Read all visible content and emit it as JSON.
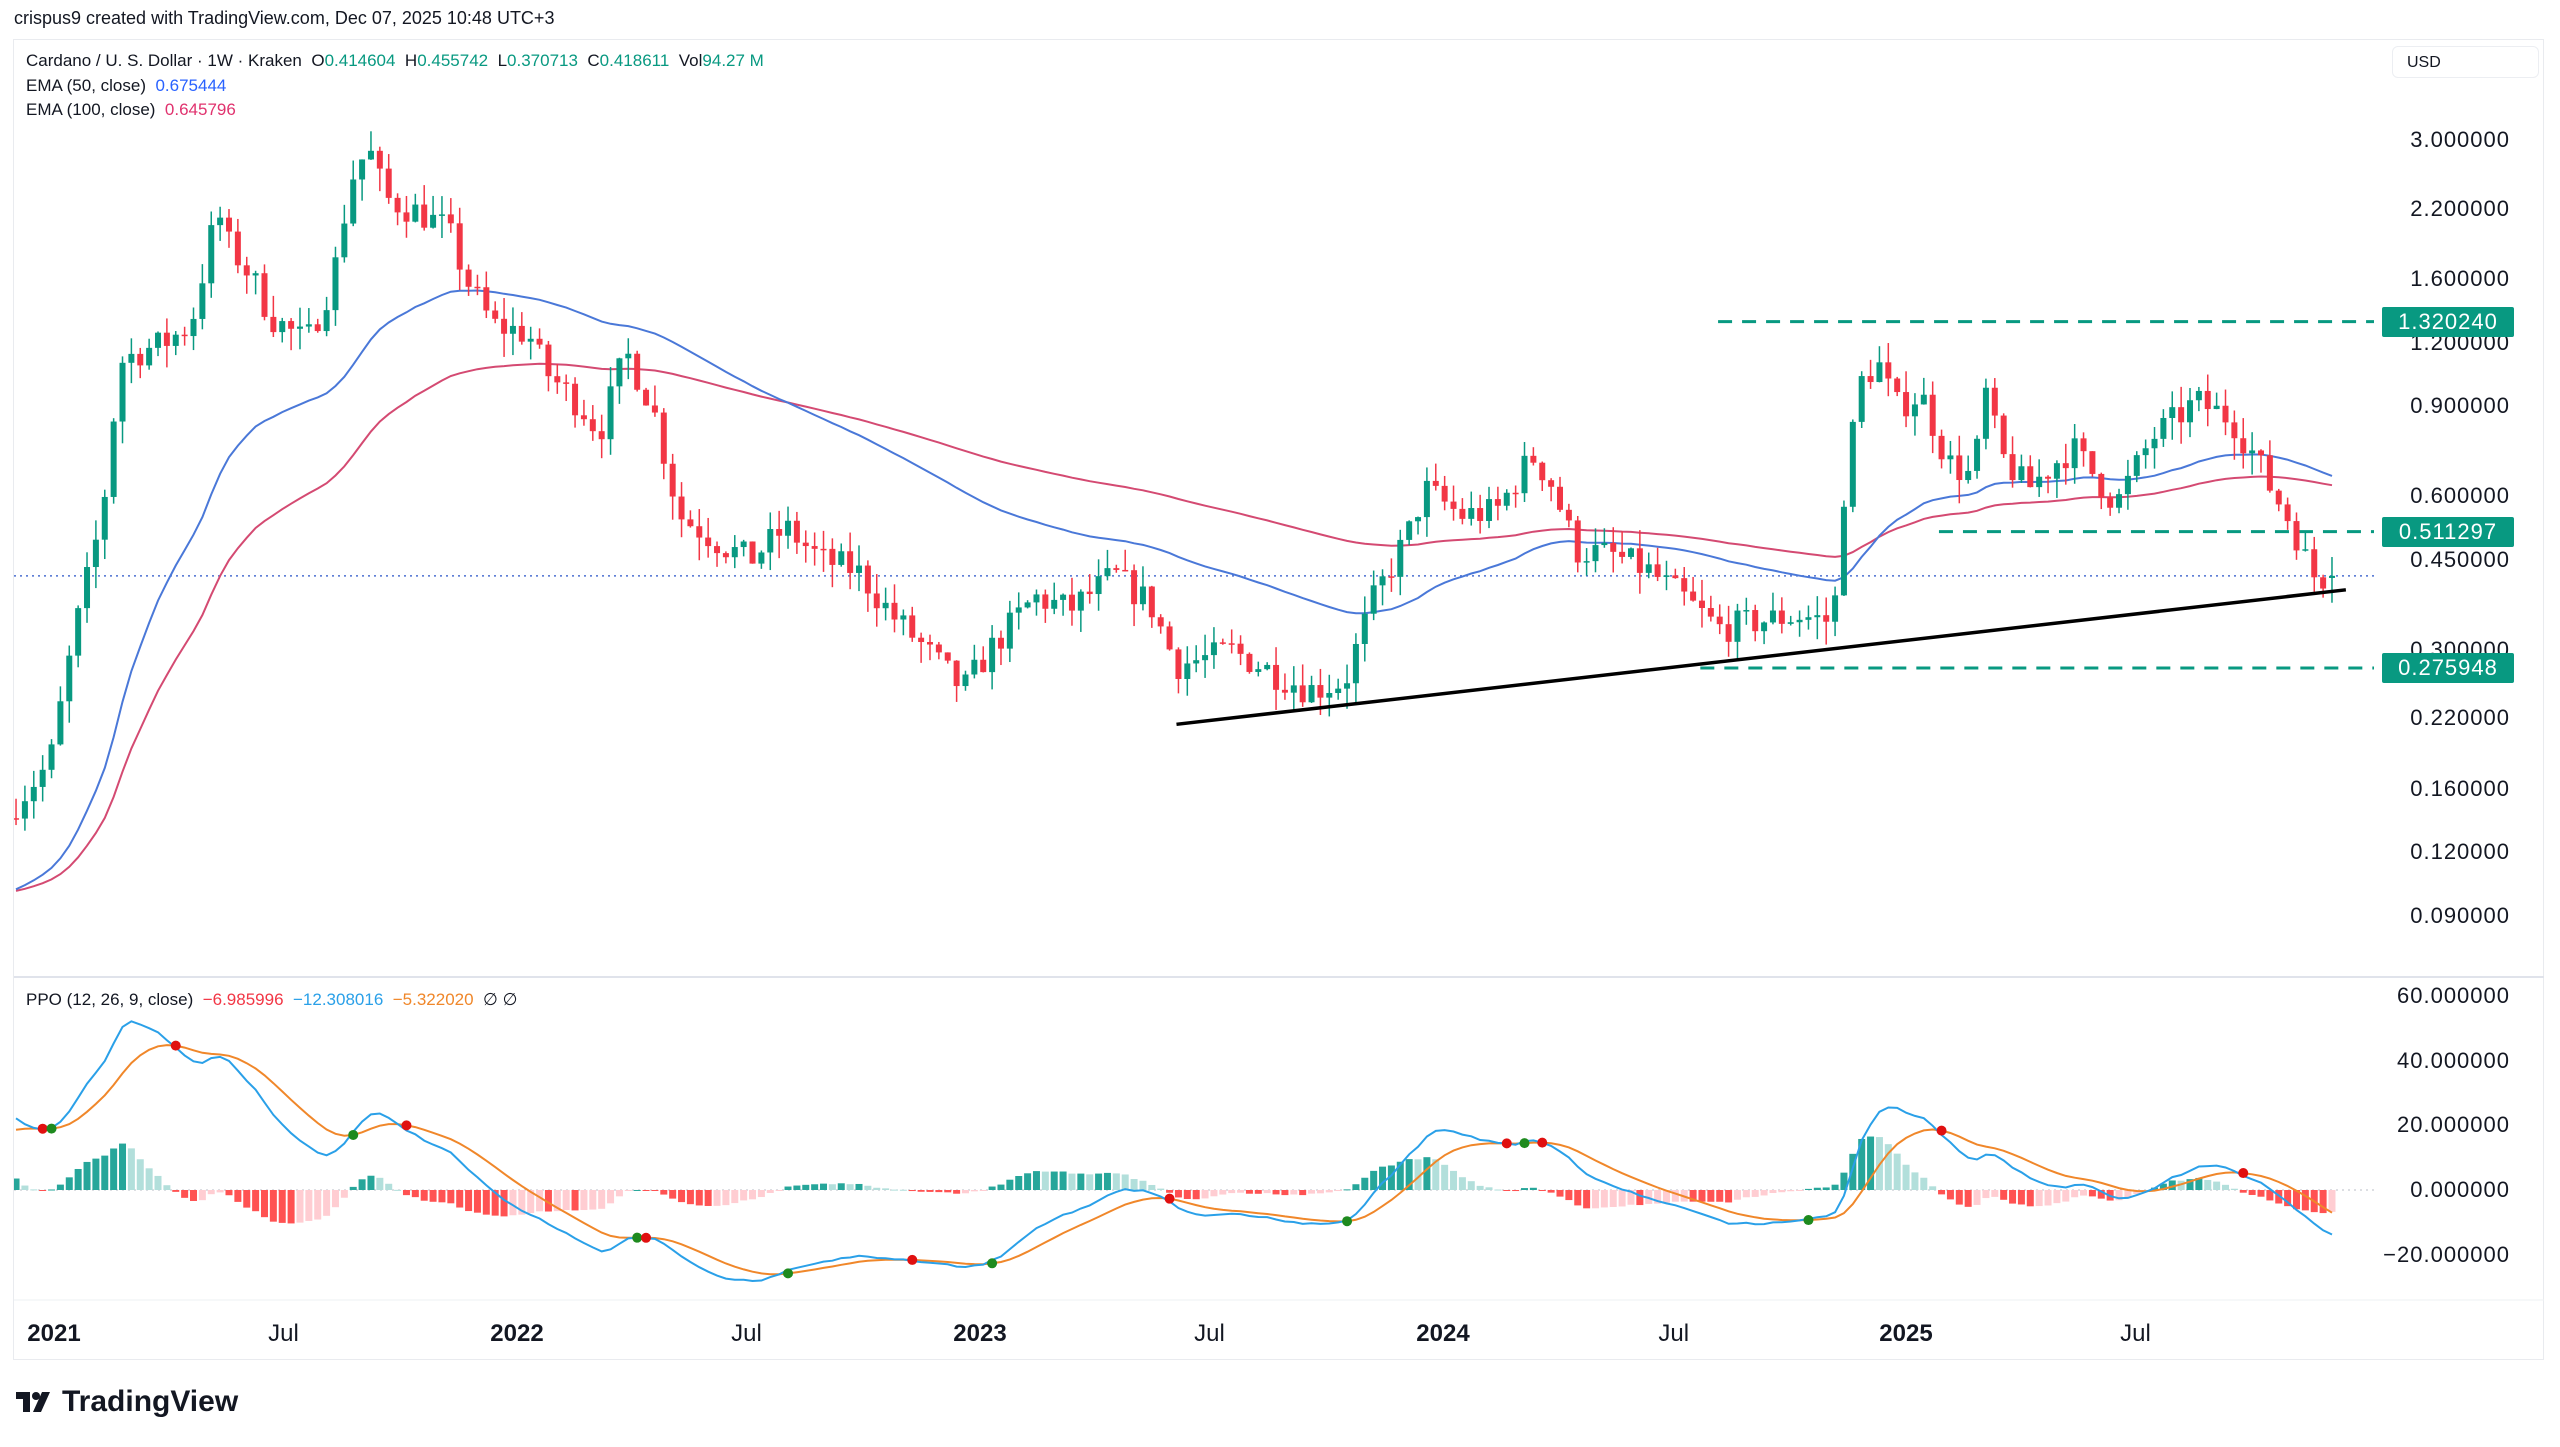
{
  "credit": "crispus9 created with TradingView.com, Dec 07, 2025 10:48 UTC+3",
  "legend": {
    "symbol": "Cardano / U. S. Dollar · 1W · Kraken",
    "o_label": "O",
    "o": "0.414604",
    "h_label": "H",
    "h": "0.455742",
    "l_label": "L",
    "l": "0.370713",
    "c_label": "C",
    "c": "0.418611",
    "vol_label": "Vol",
    "vol": "94.27 M",
    "ema50_label": "EMA (50, close)",
    "ema50": "0.675444",
    "ema100_label": "EMA (100, close)",
    "ema100": "0.645796"
  },
  "currency_button": "USD",
  "ppo_legend": {
    "label": "PPO (12, 26, 9, close)",
    "hist": "−6.985996",
    "ppo": "−12.308016",
    "signal": "−5.322020",
    "icons": "∅ ∅"
  },
  "logo_text": "TradingView",
  "colors": {
    "up": "#089981",
    "down": "#f23645",
    "ema50": "#4a78d8",
    "ema100": "#d44a72",
    "ppo": "#2aa0e8",
    "signal": "#f0872a",
    "level": "#089981"
  },
  "chart_data": {
    "type": "candlestick",
    "title": "Cardano / U. S. Dollar · 1W · Kraken",
    "scale": "log",
    "ylim": [
      0.085,
      3.3
    ],
    "price_ticks": [
      "3.000000",
      "2.200000",
      "1.600000",
      "1.200000",
      "0.900000",
      "0.600000",
      "0.450000",
      "0.300000",
      "0.220000",
      "0.160000",
      "0.120000",
      "0.090000"
    ],
    "ppo_ticks": [
      "60.000000",
      "40.000000",
      "20.000000",
      "0.000000",
      "−20.000000"
    ],
    "time_ticks": [
      {
        "label": "2021",
        "date": "2021-01-01",
        "year": true
      },
      {
        "label": "Jul",
        "date": "2021-07-01"
      },
      {
        "label": "2022",
        "date": "2022-01-01",
        "year": true
      },
      {
        "label": "Jul",
        "date": "2022-07-01"
      },
      {
        "label": "2023",
        "date": "2023-01-01",
        "year": true
      },
      {
        "label": "Jul",
        "date": "2023-07-01"
      },
      {
        "label": "2024",
        "date": "2024-01-01",
        "year": true
      },
      {
        "label": "Jul",
        "date": "2024-07-01"
      },
      {
        "label": "2025",
        "date": "2025-01-01",
        "year": true
      },
      {
        "label": "Jul",
        "date": "2025-07-01"
      }
    ],
    "levels": [
      {
        "value": 1.32024,
        "label": "1.320240",
        "from": "2024-08-05"
      },
      {
        "value": 0.511297,
        "label": "0.511297",
        "from": "2025-01-27"
      },
      {
        "value": 0.275948,
        "label": "0.275948",
        "from": "2024-07-22"
      }
    ],
    "trendline": [
      {
        "date": "2023-06-05",
        "price": 0.214
      },
      {
        "date": "2025-12-14",
        "price": 0.393
      }
    ],
    "last_close": 0.418611,
    "last_candle": {
      "open": 0.414604,
      "high": 0.455742,
      "low": 0.370713,
      "close": 0.418611
    },
    "close_keypoints": [
      [
        "2020-12-01",
        0.15
      ],
      [
        "2020-12-28",
        0.18
      ],
      [
        "2021-01-18",
        0.33
      ],
      [
        "2021-02-08",
        0.55
      ],
      [
        "2021-02-22",
        1.1
      ],
      [
        "2021-03-08",
        1.15
      ],
      [
        "2021-03-29",
        1.2
      ],
      [
        "2021-04-19",
        1.3
      ],
      [
        "2021-05-10",
        2.2
      ],
      [
        "2021-05-17",
        1.9
      ],
      [
        "2021-06-07",
        1.6
      ],
      [
        "2021-06-21",
        1.35
      ],
      [
        "2021-07-19",
        1.2
      ],
      [
        "2021-08-09",
        1.6
      ],
      [
        "2021-08-23",
        2.5
      ],
      [
        "2021-09-06",
        2.9
      ],
      [
        "2021-09-20",
        2.3
      ],
      [
        "2021-10-18",
        2.15
      ],
      [
        "2021-11-08",
        2.0
      ],
      [
        "2021-11-22",
        1.6
      ],
      [
        "2021-12-13",
        1.3
      ],
      [
        "2022-01-10",
        1.25
      ],
      [
        "2022-01-24",
        1.05
      ],
      [
        "2022-02-21",
        0.9
      ],
      [
        "2022-03-07",
        0.8
      ],
      [
        "2022-03-28",
        1.15
      ],
      [
        "2022-04-18",
        0.9
      ],
      [
        "2022-05-09",
        0.55
      ],
      [
        "2022-06-13",
        0.48
      ],
      [
        "2022-07-04",
        0.45
      ],
      [
        "2022-08-01",
        0.52
      ],
      [
        "2022-08-29",
        0.45
      ],
      [
        "2022-09-26",
        0.43
      ],
      [
        "2022-10-24",
        0.35
      ],
      [
        "2022-11-14",
        0.31
      ],
      [
        "2022-12-19",
        0.25
      ],
      [
        "2023-01-09",
        0.3
      ],
      [
        "2023-02-13",
        0.38
      ],
      [
        "2023-03-13",
        0.36
      ],
      [
        "2023-04-17",
        0.42
      ],
      [
        "2023-05-15",
        0.37
      ],
      [
        "2023-06-05",
        0.28
      ],
      [
        "2023-07-03",
        0.29
      ],
      [
        "2023-07-17",
        0.3
      ],
      [
        "2023-08-21",
        0.27
      ],
      [
        "2023-09-18",
        0.25
      ],
      [
        "2023-10-16",
        0.26
      ],
      [
        "2023-11-06",
        0.37
      ],
      [
        "2023-12-04",
        0.5
      ],
      [
        "2023-12-18",
        0.62
      ],
      [
        "2024-01-15",
        0.55
      ],
      [
        "2024-02-12",
        0.56
      ],
      [
        "2024-03-11",
        0.72
      ],
      [
        "2024-03-25",
        0.65
      ],
      [
        "2024-04-15",
        0.47
      ],
      [
        "2024-05-13",
        0.46
      ],
      [
        "2024-06-10",
        0.43
      ],
      [
        "2024-07-08",
        0.38
      ],
      [
        "2024-08-05",
        0.33
      ],
      [
        "2024-09-02",
        0.34
      ],
      [
        "2024-10-07",
        0.35
      ],
      [
        "2024-11-04",
        0.34
      ],
      [
        "2024-11-11",
        0.58
      ],
      [
        "2024-11-25",
        1.0
      ],
      [
        "2024-12-09",
        1.1
      ],
      [
        "2024-12-23",
        0.9
      ],
      [
        "2025-01-13",
        0.95
      ],
      [
        "2025-02-03",
        0.7
      ],
      [
        "2025-02-24",
        0.65
      ],
      [
        "2025-03-03",
        1.0
      ],
      [
        "2025-03-17",
        0.72
      ],
      [
        "2025-04-07",
        0.62
      ],
      [
        "2025-05-12",
        0.75
      ],
      [
        "2025-06-16",
        0.58
      ],
      [
        "2025-07-14",
        0.78
      ],
      [
        "2025-08-18",
        0.92
      ],
      [
        "2025-09-15",
        0.85
      ],
      [
        "2025-10-06",
        0.7
      ],
      [
        "2025-10-13",
        0.64
      ],
      [
        "2025-11-03",
        0.52
      ],
      [
        "2025-11-17",
        0.42
      ],
      [
        "2025-12-01",
        0.414604
      ]
    ]
  }
}
